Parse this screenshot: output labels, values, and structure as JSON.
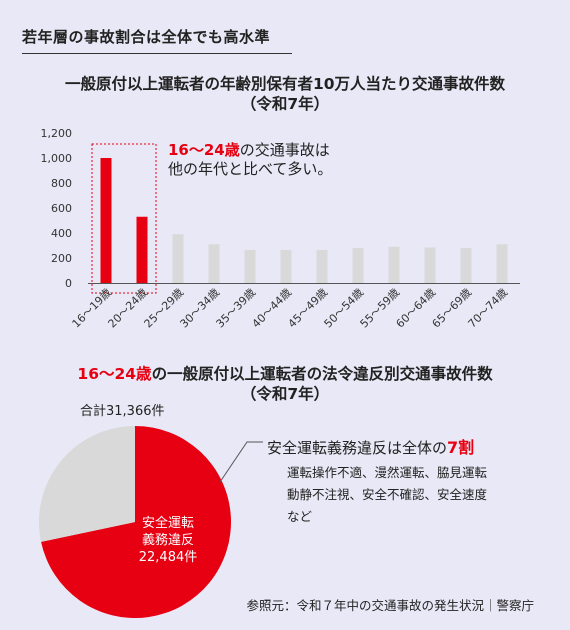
{
  "heading": "若年層の事故割合は全体でも高水準",
  "chart1": {
    "title_line1": "一般原付以上運転者の年齢別保有者10万人当たり交通事故件数",
    "title_line2": "（令和7年）",
    "annotation_red": "16～24歳",
    "annotation_line1_rest": "の交通事故は",
    "annotation_line2": "他の年代と比べて多い。"
  },
  "chart2": {
    "title_red": "16～24歳",
    "title_rest": "の一般原付以上運転者の法令違反別交通事故件数",
    "title_line2": "（令和7年）",
    "total_label": "合計31,366件",
    "slice_label_line1": "安全運転",
    "slice_label_line2": "義務違反",
    "slice_label_line3": "22,484件",
    "callout_prefix": "安全運転義務違反は全体の",
    "callout_red": "7割",
    "callout_body": "運転操作不適、漫然運転、脇見運転\n動静不注視、安全不確認、安全速度\nなど"
  },
  "source": "参照元：令和７年中の交通事故の発生状況｜警察庁",
  "colors": {
    "highlight": "#e60012",
    "muted": "#d9d9d9",
    "background": "#e9e8f6"
  },
  "chart_data": [
    {
      "type": "bar",
      "categories": [
        "16～19歳",
        "20～24歳",
        "25～29歳",
        "30～34歳",
        "35～39歳",
        "40～44歳",
        "45～49歳",
        "50～54歳",
        "55～59歳",
        "60～64歳",
        "65～69歳",
        "70～74歳"
      ],
      "values": [
        1000,
        530,
        390,
        310,
        265,
        265,
        265,
        280,
        290,
        285,
        280,
        310
      ],
      "highlight_categories": [
        "16～19歳",
        "20～24歳"
      ],
      "yticks": [
        "0",
        "200",
        "400",
        "600",
        "800",
        "1,000",
        "1,200"
      ],
      "ylim": [
        0,
        1200
      ],
      "grid": false,
      "legend": "none"
    },
    {
      "type": "pie",
      "labels": [
        "安全運転義務違反",
        ""
      ],
      "values": [
        22484,
        8882
      ],
      "total": 31366
    }
  ]
}
